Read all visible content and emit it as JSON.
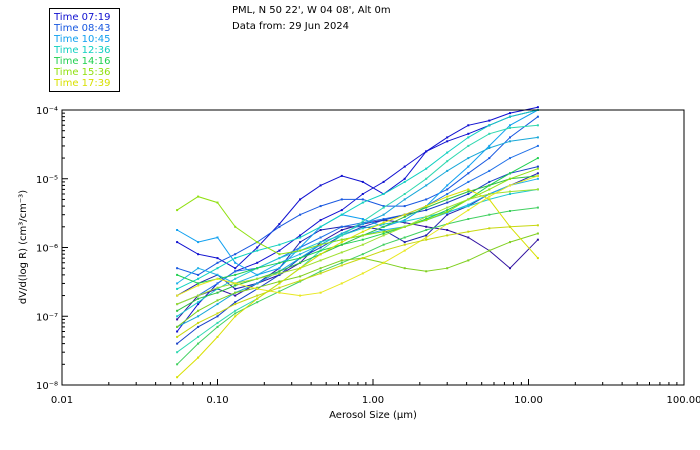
{
  "header": {
    "line1": "PML, N 50 22', W 04 08', Alt 0m",
    "line2": "Data from: 29 Jun 2024"
  },
  "legend": [
    {
      "label": "Time 07:19",
      "color": "#1010d0"
    },
    {
      "label": "Time 08:43",
      "color": "#1858e0"
    },
    {
      "label": "Time 10:45",
      "color": "#10a0f0"
    },
    {
      "label": "Time 12:36",
      "color": "#10d0c0"
    },
    {
      "label": "Time 14:16",
      "color": "#20d050"
    },
    {
      "label": "Time 15:36",
      "color": "#90e010"
    },
    {
      "label": "Time 17:39",
      "color": "#d8e000"
    }
  ],
  "chart_data": {
    "type": "line",
    "title": "",
    "xlabel": "Aerosol Size (µm)",
    "ylabel": "dV/d(log R) (cm³/cm⁻³)",
    "xscale": "log",
    "yscale": "log",
    "xlim": [
      0.01,
      100
    ],
    "ylim": [
      1e-08,
      0.0001
    ],
    "x_ticks": [
      {
        "value": 0.01,
        "label": "0.01"
      },
      {
        "value": 0.1,
        "label": "0.10"
      },
      {
        "value": 1,
        "label": "1.00"
      },
      {
        "value": 10,
        "label": "10.00"
      },
      {
        "value": 100,
        "label": "100.00"
      }
    ],
    "y_ticks": [
      {
        "value": 1e-08,
        "label": "10⁻⁸"
      },
      {
        "value": 1e-07,
        "label": "10⁻⁷"
      },
      {
        "value": 1e-06,
        "label": "10⁻⁶"
      },
      {
        "value": 1e-05,
        "label": "10⁻⁵"
      },
      {
        "value": 0.0001,
        "label": "10⁻⁴"
      }
    ],
    "x": [
      0.055,
      0.075,
      0.1,
      0.13,
      0.18,
      0.25,
      0.34,
      0.46,
      0.63,
      0.86,
      1.17,
      1.6,
      2.2,
      3.0,
      4.1,
      5.6,
      7.6,
      11.5
    ],
    "series": [
      {
        "name": "07:19",
        "color": "#1010d0",
        "values": [
          6e-08,
          1.5e-07,
          3e-07,
          4.5e-07,
          6e-07,
          9e-07,
          1.5e-06,
          2.5e-06,
          3.5e-06,
          6e-06,
          9e-06,
          1.5e-05,
          2.5e-05,
          3.5e-05,
          4.5e-05,
          6e-05,
          8e-05,
          0.0001
        ]
      },
      {
        "name": "07:19",
        "color": "#1010d0",
        "values": [
          1.2e-06,
          8e-07,
          7e-07,
          5e-07,
          1e-06,
          2.2e-06,
          5e-06,
          8e-06,
          1.1e-05,
          9e-06,
          6e-06,
          1e-05,
          2.5e-05,
          4e-05,
          6e-05,
          7e-05,
          9e-05,
          0.00011
        ]
      },
      {
        "name": "07:19",
        "color": "#2020b0",
        "values": [
          2e-07,
          3e-07,
          4e-07,
          2.5e-07,
          3e-07,
          5e-07,
          1.2e-06,
          1.8e-06,
          2e-06,
          2e-06,
          1.8e-06,
          1.2e-06,
          1.5e-06,
          3e-06,
          4e-06,
          6e-06,
          8e-06,
          1.2e-05
        ]
      },
      {
        "name": "07:19",
        "color": "#3010a0",
        "values": [
          9e-08,
          2e-07,
          2.5e-07,
          2e-07,
          3e-07,
          4e-07,
          6e-07,
          1.2e-06,
          1.8e-06,
          2.2e-06,
          2.5e-06,
          2.3e-06,
          2e-06,
          1.8e-06,
          1.4e-06,
          9e-07,
          5e-07,
          1.3e-06
        ]
      },
      {
        "name": "08:43",
        "color": "#1858e0",
        "values": [
          5e-07,
          4e-07,
          6e-07,
          8e-07,
          1.2e-06,
          2e-06,
          3e-06,
          4e-06,
          5e-06,
          5e-06,
          4e-06,
          4e-06,
          5e-06,
          7e-06,
          1.2e-05,
          2e-05,
          4e-05,
          8e-05
        ]
      },
      {
        "name": "08:43",
        "color": "#2070e8",
        "values": [
          1.5e-07,
          2e-07,
          3e-07,
          4.5e-07,
          5e-07,
          7e-07,
          1e-06,
          1.4e-06,
          2e-06,
          2.3e-06,
          2.6e-06,
          3e-06,
          4e-06,
          6e-06,
          9e-06,
          1.3e-05,
          2e-05,
          3e-05
        ]
      },
      {
        "name": "08:43",
        "color": "#1840c8",
        "values": [
          4e-08,
          7e-08,
          1e-07,
          1.6e-07,
          2.5e-07,
          4e-07,
          7e-07,
          1e-06,
          1.5e-06,
          2e-06,
          2.5e-06,
          3e-06,
          3.5e-06,
          4.5e-06,
          6e-06,
          9e-06,
          1.2e-05,
          1.5e-05
        ]
      },
      {
        "name": "10:45",
        "color": "#10a0f0",
        "values": [
          1.8e-06,
          1.2e-06,
          1.4e-06,
          6e-07,
          4e-07,
          5e-07,
          1e-06,
          2e-06,
          3e-06,
          2.6e-06,
          2e-06,
          2.5e-06,
          4e-06,
          8e-06,
          1.5e-05,
          3e-05,
          6e-05,
          0.0001
        ]
      },
      {
        "name": "10:45",
        "color": "#20b0e8",
        "values": [
          3e-07,
          5e-07,
          4e-07,
          3e-07,
          4e-07,
          6e-07,
          8e-07,
          1.1e-06,
          1.3e-06,
          1.5e-06,
          1.8e-06,
          2e-06,
          2.5e-06,
          3.2e-06,
          4.2e-06,
          6e-06,
          8e-06,
          1e-05
        ]
      },
      {
        "name": "10:45",
        "color": "#18a8d8",
        "values": [
          7e-08,
          1e-07,
          1.5e-07,
          2.2e-07,
          3e-07,
          4.5e-07,
          7e-07,
          1.1e-06,
          1.6e-06,
          2.2e-06,
          3e-06,
          5e-06,
          8e-06,
          1.3e-05,
          2e-05,
          2.8e-05,
          3.5e-05,
          4e-05
        ]
      },
      {
        "name": "12:36",
        "color": "#10d0c0",
        "values": [
          2.5e-07,
          3.5e-07,
          5e-07,
          7e-07,
          9e-07,
          1.1e-06,
          1.4e-06,
          2e-06,
          3e-06,
          4.5e-06,
          6e-06,
          9e-06,
          1.4e-05,
          2.4e-05,
          4e-05,
          6e-05,
          8e-05,
          0.0001
        ]
      },
      {
        "name": "12:36",
        "color": "#20c8d0",
        "values": [
          1e-07,
          1.6e-07,
          2.5e-07,
          3.5e-07,
          5e-07,
          7e-07,
          9e-07,
          1.2e-06,
          1.5e-06,
          1.9e-06,
          2.2e-06,
          2.4e-06,
          2.8e-06,
          3.3e-06,
          4e-06,
          5e-06,
          6e-06,
          7e-06
        ]
      },
      {
        "name": "12:36",
        "color": "#30d8b0",
        "values": [
          3e-08,
          5e-08,
          8e-08,
          1.2e-07,
          1.8e-07,
          3e-07,
          5e-07,
          9e-07,
          1.5e-06,
          2.4e-06,
          3.8e-06,
          6e-06,
          1e-05,
          1.8e-05,
          3e-05,
          4.5e-05,
          5.5e-05,
          6e-05
        ]
      },
      {
        "name": "14:16",
        "color": "#20d050",
        "values": [
          4e-07,
          3e-07,
          3.5e-07,
          4e-07,
          5e-07,
          6e-07,
          7e-07,
          9e-07,
          1.1e-06,
          1.3e-06,
          1.6e-06,
          2e-06,
          2.6e-06,
          3.5e-06,
          5e-06,
          8e-06,
          1.2e-05,
          2e-05
        ]
      },
      {
        "name": "14:16",
        "color": "#30c040",
        "values": [
          1.2e-07,
          1.8e-07,
          2.2e-07,
          2.8e-07,
          3.5e-07,
          4.5e-07,
          6e-07,
          8e-07,
          1.1e-06,
          1.5e-06,
          2e-06,
          2.8e-06,
          3.8e-06,
          5e-06,
          6.5e-06,
          8e-06,
          1e-05,
          1.1e-05
        ]
      },
      {
        "name": "14:16",
        "color": "#40d060",
        "values": [
          2e-08,
          4e-08,
          7e-08,
          1.1e-07,
          1.6e-07,
          2.3e-07,
          3.2e-07,
          4.5e-07,
          6e-07,
          8e-07,
          1.1e-06,
          1.4e-06,
          1.8e-06,
          2.2e-06,
          2.6e-06,
          3e-06,
          3.4e-06,
          3.8e-06
        ]
      },
      {
        "name": "15:36",
        "color": "#90e010",
        "values": [
          3.5e-06,
          5.5e-06,
          4.5e-06,
          2e-06,
          1.2e-06,
          8e-07,
          9e-07,
          1.1e-06,
          1.3e-06,
          1.5e-06,
          1.7e-06,
          2e-06,
          2.5e-06,
          3.3e-06,
          5e-06,
          7e-06,
          1e-05,
          1.4e-05
        ]
      },
      {
        "name": "15:36",
        "color": "#80d020",
        "values": [
          7e-08,
          1.2e-07,
          1.7e-07,
          2.2e-07,
          2.6e-07,
          3.2e-07,
          3.8e-07,
          5e-07,
          6.5e-07,
          7e-07,
          6e-07,
          5e-07,
          4.5e-07,
          5e-07,
          6.5e-07,
          9e-07,
          1.2e-06,
          1.6e-06
        ]
      },
      {
        "name": "15:36",
        "color": "#a0e030",
        "values": [
          1.5e-07,
          2e-07,
          2.6e-07,
          3e-07,
          3.5e-07,
          4.2e-07,
          5e-07,
          6.5e-07,
          8.5e-07,
          1.1e-06,
          1.5e-06,
          2e-06,
          2.8e-06,
          3.8e-06,
          5e-06,
          6e-06,
          6.5e-06,
          7e-06
        ]
      },
      {
        "name": "17:39",
        "color": "#d8e000",
        "values": [
          1.3e-08,
          2.5e-08,
          5e-08,
          1e-07,
          1.8e-07,
          3e-07,
          5e-07,
          8e-07,
          1.2e-06,
          1.7e-06,
          2.3e-06,
          3e-06,
          4e-06,
          5.5e-06,
          7e-06,
          5e-06,
          2e-06,
          7e-07
        ]
      },
      {
        "name": "17:39",
        "color": "#e8e820",
        "values": [
          2e-07,
          2.8e-07,
          3.5e-07,
          3e-07,
          2.5e-07,
          2.2e-07,
          2e-07,
          2.2e-07,
          3e-07,
          4.2e-07,
          6e-07,
          9e-07,
          1.4e-06,
          2.2e-06,
          3.5e-06,
          5.5e-06,
          8e-06,
          1.1e-05
        ]
      },
      {
        "name": "17:39",
        "color": "#c8d810",
        "values": [
          5e-08,
          8e-08,
          1.1e-07,
          1.5e-07,
          2e-07,
          2.6e-07,
          3.3e-07,
          4.2e-07,
          5.5e-07,
          7e-07,
          9e-07,
          1.1e-06,
          1.3e-06,
          1.5e-06,
          1.7e-06,
          1.9e-06,
          2e-06,
          2.1e-06
        ]
      }
    ]
  }
}
